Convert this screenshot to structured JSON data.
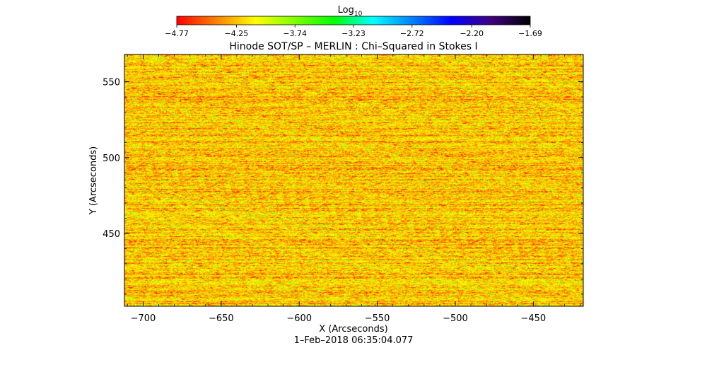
{
  "chart_data": {
    "type": "heatmap",
    "title": "Hinode SOT/SP – MERLIN : Chi–Squared in Stokes I",
    "xlabel": "X (Arcseconds)",
    "ylabel": "Y (Arcseconds)",
    "xlim": [
      -712,
      -418
    ],
    "ylim": [
      402,
      568
    ],
    "x_ticks": [
      -700,
      -650,
      -600,
      -550,
      -500,
      -450
    ],
    "x_tick_labels": [
      "−700",
      "−650",
      "−600",
      "−550",
      "−500",
      "−450"
    ],
    "y_ticks": [
      450,
      500,
      550
    ],
    "y_tick_labels": [
      "450",
      "500",
      "550"
    ],
    "timestamp": "1–Feb–2018 06:35:04.077",
    "colorbar": {
      "label_main": "Log",
      "label_sub": "10",
      "min": -4.77,
      "max": -1.69,
      "ticks": [
        -4.77,
        -4.25,
        -3.74,
        -3.23,
        -2.72,
        -2.2,
        -1.69
      ],
      "tick_labels": [
        "−4.77",
        "−4.25",
        "−3.74",
        "−3.23",
        "−2.72",
        "−2.20",
        "−1.69"
      ],
      "colors": [
        "#ff0000",
        "#ff8000",
        "#ffff00",
        "#80ff00",
        "#00ff00",
        "#00ffff",
        "#0080ff",
        "#0000ff",
        "#400080",
        "#000000"
      ]
    },
    "value_distribution": {
      "typical_range": [
        -4.77,
        -3.5
      ],
      "dominant_colors": [
        "#ff2a00",
        "#ff8c00",
        "#ffd200",
        "#eaff00",
        "#7cff20"
      ]
    }
  }
}
